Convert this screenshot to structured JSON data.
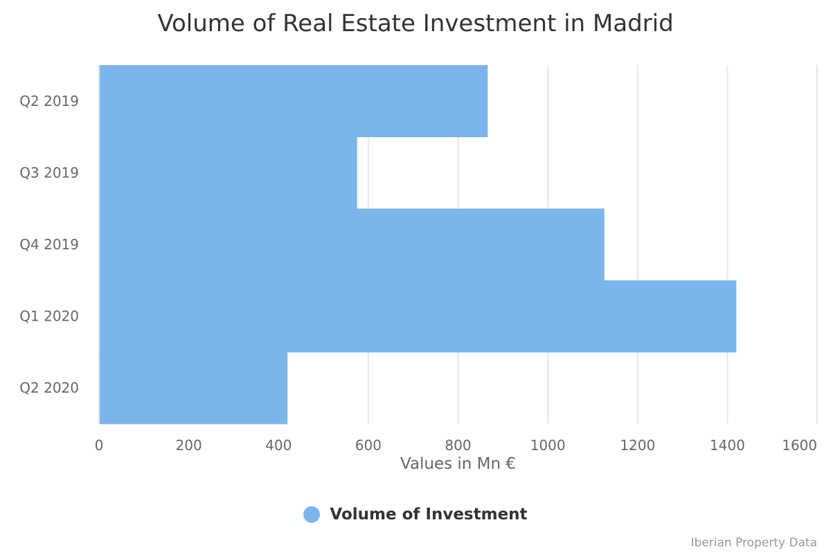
{
  "chart_data": {
    "type": "bar",
    "orientation": "horizontal",
    "title": "Volume of Real Estate Investment in Madrid",
    "categories": [
      "Q2 2019",
      "Q3 2019",
      "Q4 2019",
      "Q1 2020",
      "Q2 2020"
    ],
    "series": [
      {
        "name": "Volume of Investment",
        "values": [
          866,
          575,
          1126,
          1420,
          420
        ],
        "color": "#7cb5ec"
      }
    ],
    "xlabel": "Values in Mn €",
    "ylabel": "",
    "xlim": [
      0,
      1600
    ],
    "xticks": [
      0,
      200,
      400,
      600,
      800,
      1000,
      1200,
      1400,
      1600
    ],
    "grid": true,
    "legend": "bottom-center"
  },
  "credits": "Iberian Property Data"
}
